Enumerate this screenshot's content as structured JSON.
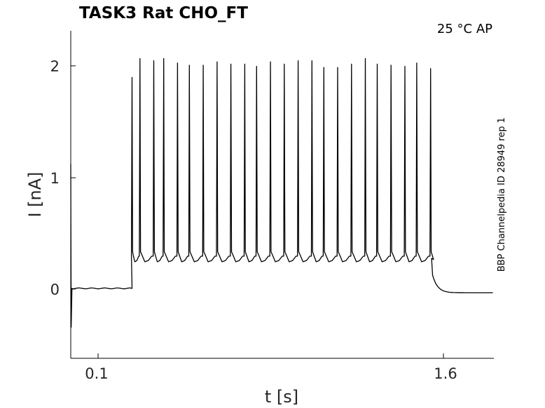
{
  "chart_data": {
    "type": "line",
    "title": "TASK3  Rat  CHO_FT",
    "condition_label": "25 °C  AP",
    "side_label": "BBP Channelpedia ID 28949 rep 1",
    "xlabel": "t [s]",
    "ylabel": "I [nA]",
    "xlim": [
      -0.22,
      1.92
    ],
    "ylim": [
      -0.63,
      2.32
    ],
    "x_ticks": [
      "0.1",
      "1.6"
    ],
    "y_ticks": [
      "0",
      "1",
      "2"
    ],
    "grid": false,
    "series": [
      {
        "baseline_before": 0.0,
        "stim_on": 0.1,
        "stim_off": 1.6,
        "plateau": 0.24,
        "spike_times": [
          0.09,
          0.13,
          0.2,
          0.25,
          0.32,
          0.38,
          0.45,
          0.52,
          0.59,
          0.66,
          0.72,
          0.79,
          0.86,
          0.93,
          1.0,
          1.06,
          1.13,
          1.2,
          1.27,
          1.33,
          1.4,
          1.47,
          1.53,
          1.6
        ],
        "spike_peaks": [
          1.9,
          2.07,
          2.05,
          2.07,
          2.03,
          2.01,
          2.01,
          2.04,
          2.02,
          2.02,
          2.0,
          2.04,
          2.02,
          2.05,
          2.05,
          1.99,
          1.99,
          2.02,
          2.07,
          2.02,
          2.01,
          2.0,
          2.03,
          1.98
        ],
        "baseline_after": -0.04
      }
    ]
  }
}
